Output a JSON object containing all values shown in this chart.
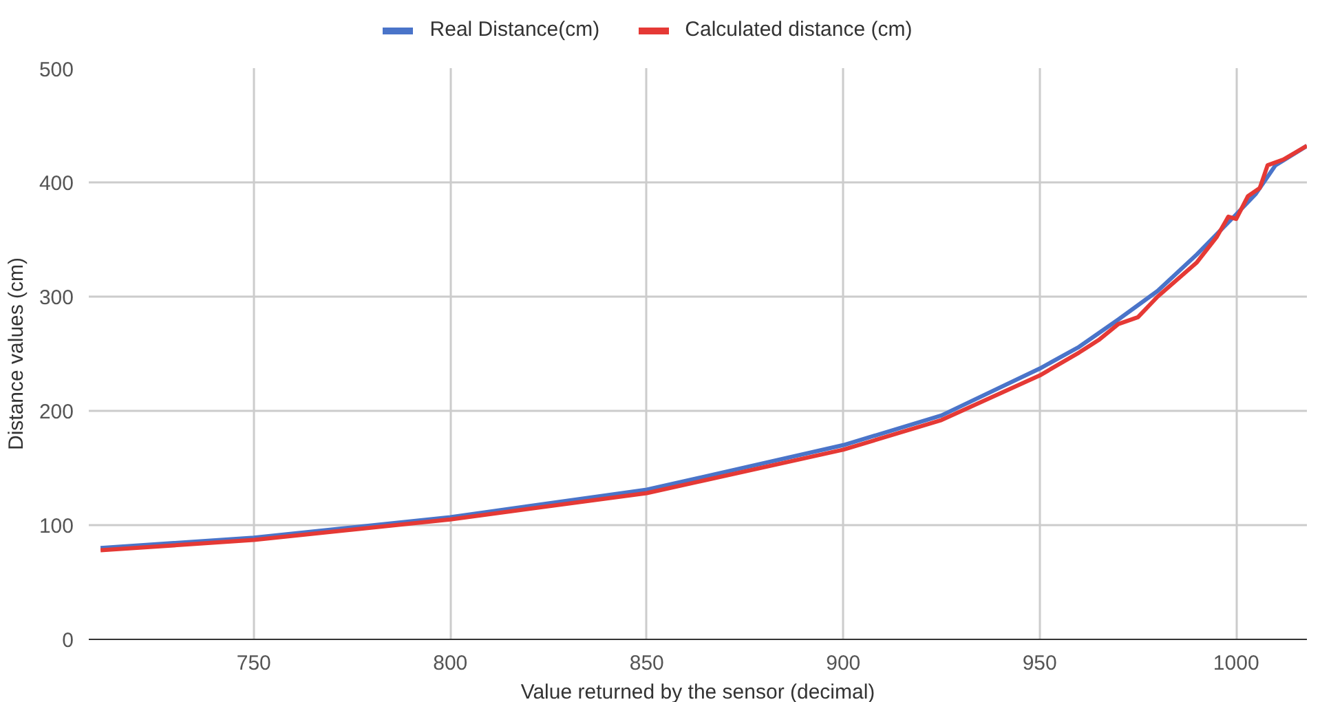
{
  "chart_data": {
    "type": "line",
    "xlabel": "Value returned by the sensor (decimal)",
    "ylabel": "Distance values (cm)",
    "xlim": [
      708,
      1018
    ],
    "ylim": [
      0,
      500
    ],
    "xticks": [
      750,
      800,
      850,
      900,
      950,
      1000
    ],
    "yticks": [
      0,
      100,
      200,
      300,
      400,
      500
    ],
    "grid": true,
    "legend": "top",
    "marker": "none",
    "line_style": "solid",
    "series": [
      {
        "name": "Real Distance(cm)",
        "color": "#4a74c9",
        "x": [
          711,
          750,
          800,
          850,
          900,
          925,
          950,
          960,
          970,
          980,
          990,
          1000,
          1005,
          1010,
          1018
        ],
        "values": [
          80,
          89,
          107,
          131,
          170,
          196,
          237,
          256,
          280,
          305,
          337,
          372,
          390,
          415,
          432
        ]
      },
      {
        "name": "Calculated distance (cm)",
        "color": "#e53935",
        "x": [
          711,
          750,
          800,
          850,
          900,
          925,
          950,
          960,
          965,
          970,
          975,
          980,
          990,
          995,
          998,
          1000,
          1003,
          1006,
          1008,
          1012,
          1018
        ],
        "values": [
          78,
          87,
          105,
          128,
          166,
          192,
          231,
          251,
          262,
          276,
          282,
          300,
          330,
          352,
          370,
          368,
          388,
          395,
          415,
          420,
          432
        ]
      }
    ]
  }
}
